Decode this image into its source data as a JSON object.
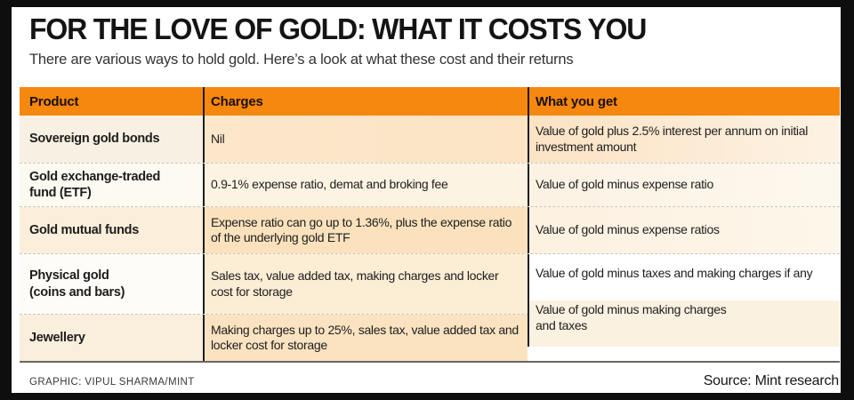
{
  "chart_data": {
    "type": "table",
    "title": "FOR THE LOVE OF GOLD: WHAT IT COSTS YOU",
    "subtitle": "There are various ways to hold gold. Here’s a look at what these cost and their returns",
    "columns": [
      "Product",
      "Charges",
      "What you get"
    ],
    "rows": [
      {
        "product": "Sovereign gold bonds",
        "charges": "Nil",
        "what_you_get": "Value of gold plus 2.5% interest per annum on initial investment amount"
      },
      {
        "product": "Gold exchange-traded\nfund (ETF)",
        "charges": "0.9-1% expense ratio, demat and broking fee",
        "what_you_get": "Value of gold minus expense ratio"
      },
      {
        "product": "Gold mutual funds",
        "charges": "Expense ratio can go up to 1.36%, plus the expense ratio of the underlying gold ETF",
        "what_you_get": "Value of gold minus expense ratios"
      },
      {
        "product": "Physical gold\n(coins and bars)",
        "charges": "Sales tax, value added tax, making charges and locker cost for storage",
        "what_you_get": "Value of gold minus taxes and making charges if any"
      },
      {
        "product": "Jewellery",
        "charges": "Making charges up to 25%, sales tax, value added tax and locker cost for storage",
        "what_you_get": "Value of gold minus making charges\nand taxes"
      }
    ],
    "legend_position": "none",
    "grid": "dotted row dividers, solid black column rules"
  },
  "footer": {
    "credit": "GRAPHIC: VIPUL SHARMA/MINT",
    "source": "Source: Mint research"
  },
  "colors": {
    "header_orange": "#f6870f",
    "frame_black": "#0e0e0e",
    "row_tint_odd": "#fbe3c4",
    "row_tint_even": "#fdf3e2",
    "text_black": "#1d1d1d"
  }
}
